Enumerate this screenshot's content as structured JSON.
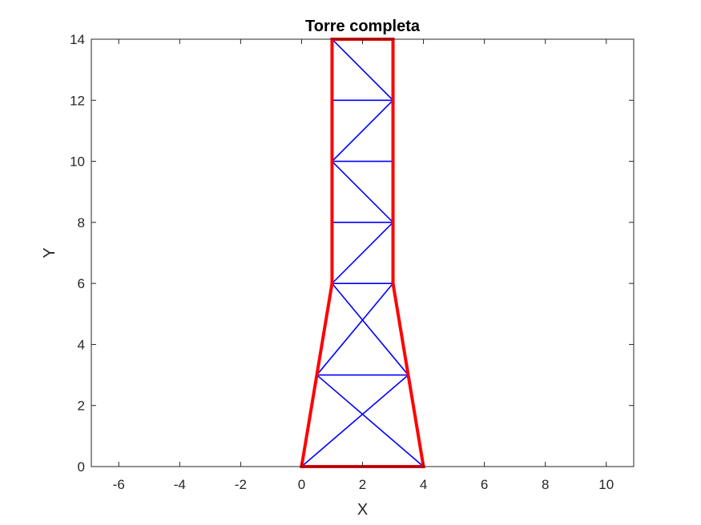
{
  "chart_data": {
    "type": "line",
    "title": "Torre completa",
    "xlabel": "X",
    "ylabel": "Y",
    "xlim": [
      -6.9,
      10.9
    ],
    "ylim": [
      0,
      14
    ],
    "xticks": [
      -6,
      -4,
      -2,
      0,
      2,
      4,
      6,
      8,
      10
    ],
    "yticks": [
      0,
      2,
      4,
      6,
      8,
      10,
      12,
      14
    ],
    "grid": false,
    "series": [
      {
        "color": "#0000ff",
        "style": "thin",
        "segments": [
          [
            [
              0,
              0
            ],
            [
              3.5,
              3
            ]
          ],
          [
            [
              4,
              0
            ],
            [
              0.5,
              3
            ]
          ],
          [
            [
              0.5,
              3
            ],
            [
              3.5,
              3
            ]
          ],
          [
            [
              0.5,
              3
            ],
            [
              3,
              6
            ]
          ],
          [
            [
              3.5,
              3
            ],
            [
              1,
              6
            ]
          ],
          [
            [
              1,
              6
            ],
            [
              3,
              6
            ]
          ],
          [
            [
              1,
              6
            ],
            [
              3,
              8
            ]
          ],
          [
            [
              1,
              8
            ],
            [
              3,
              8
            ]
          ],
          [
            [
              3,
              8
            ],
            [
              1,
              10
            ]
          ],
          [
            [
              1,
              10
            ],
            [
              3,
              10
            ]
          ],
          [
            [
              1,
              10
            ],
            [
              3,
              12
            ]
          ],
          [
            [
              1,
              12
            ],
            [
              3,
              12
            ]
          ],
          [
            [
              3,
              12
            ],
            [
              1,
              14
            ]
          ]
        ]
      },
      {
        "color": "#ff0000",
        "style": "thick",
        "segments": [
          [
            [
              0,
              0
            ],
            [
              4,
              0
            ]
          ],
          [
            [
              0,
              0
            ],
            [
              1,
              6
            ]
          ],
          [
            [
              4,
              0
            ],
            [
              3,
              6
            ]
          ],
          [
            [
              1,
              6
            ],
            [
              1,
              14
            ]
          ],
          [
            [
              3,
              6
            ],
            [
              3,
              14
            ]
          ],
          [
            [
              1,
              14
            ],
            [
              3,
              14
            ]
          ]
        ]
      }
    ]
  }
}
